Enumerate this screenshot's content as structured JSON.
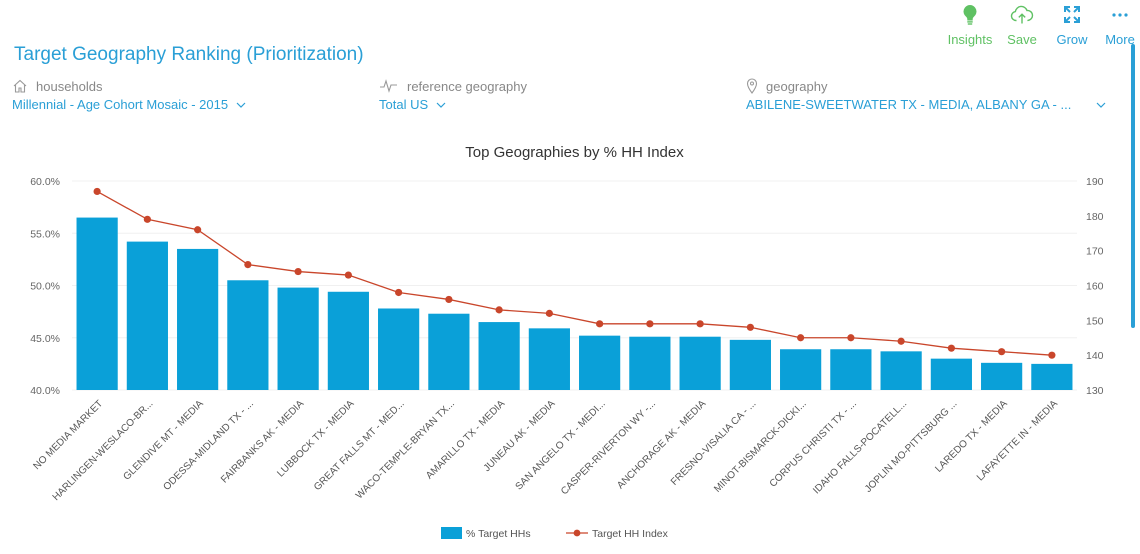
{
  "toolbar": {
    "insights": "Insights",
    "save": "Save",
    "grow": "Grow",
    "more": "More"
  },
  "page_title": "Target Geography Ranking (Prioritization)",
  "filters": {
    "households": {
      "caption": "households",
      "value": "Millennial - Age Cohort Mosaic - 2015"
    },
    "reference": {
      "caption": "reference geography",
      "value": "Total US"
    },
    "geography": {
      "caption": "geography",
      "value": "ABILENE-SWEETWATER TX - MEDIA, ALBANY GA - ..."
    }
  },
  "colors": {
    "accent": "#2a9fd6",
    "bar": "#0aa0d8",
    "line": "#c9462b",
    "green": "#5fc163"
  },
  "chart_data": {
    "type": "bar",
    "title": "Top Geographies by % HH Index",
    "categories": [
      "NO MEDIA MARKET",
      "HARLINGEN-WESLACO-BR...",
      "GLENDIVE MT - MEDIA",
      "ODESSA-MIDLAND TX - ...",
      "FAIRBANKS AK - MEDIA",
      "LUBBOCK TX - MEDIA",
      "GREAT FALLS MT - MED...",
      "WACO-TEMPLE-BRYAN TX...",
      "AMARILLO TX - MEDIA",
      "JUNEAU AK - MEDIA",
      "SAN ANGELO TX - MEDI...",
      "CASPER-RIVERTON WY -...",
      "ANCHORAGE AK - MEDIA",
      "FRESNO-VISALIA CA - ...",
      "MINOT-BISMARCK-DICKI...",
      "CORPUS CHRISTI TX - ...",
      "IDAHO FALLS-POCATELL...",
      "JOPLIN MO-PITTSBURG ...",
      "LAREDO TX - MEDIA",
      "LAFAYETTE IN - MEDIA"
    ],
    "series": [
      {
        "name": "% Target HHs",
        "type": "bar",
        "axis": "left",
        "values": [
          56.5,
          54.2,
          53.5,
          50.5,
          49.8,
          49.4,
          47.8,
          47.3,
          46.5,
          45.9,
          45.2,
          45.1,
          45.1,
          44.8,
          43.9,
          43.9,
          43.7,
          43.0,
          42.6,
          42.5
        ]
      },
      {
        "name": "Target HH Index",
        "type": "line",
        "axis": "right",
        "values": [
          187,
          179,
          176,
          166,
          164,
          163,
          158,
          156,
          153,
          152,
          149,
          149,
          149,
          148,
          145,
          145,
          144,
          142,
          141,
          140
        ]
      }
    ],
    "y_left": {
      "ticks": [
        "40.0%",
        "45.0%",
        "50.0%",
        "55.0%",
        "60.0%"
      ],
      "ylim": [
        40,
        60
      ]
    },
    "y_right": {
      "ticks": [
        "130",
        "140",
        "150",
        "160",
        "170",
        "180",
        "190"
      ],
      "ylim": [
        130,
        190
      ]
    },
    "legend": {
      "position": "bottom-center",
      "entries": [
        "% Target HHs",
        "Target HH Index"
      ]
    },
    "grid": true
  }
}
